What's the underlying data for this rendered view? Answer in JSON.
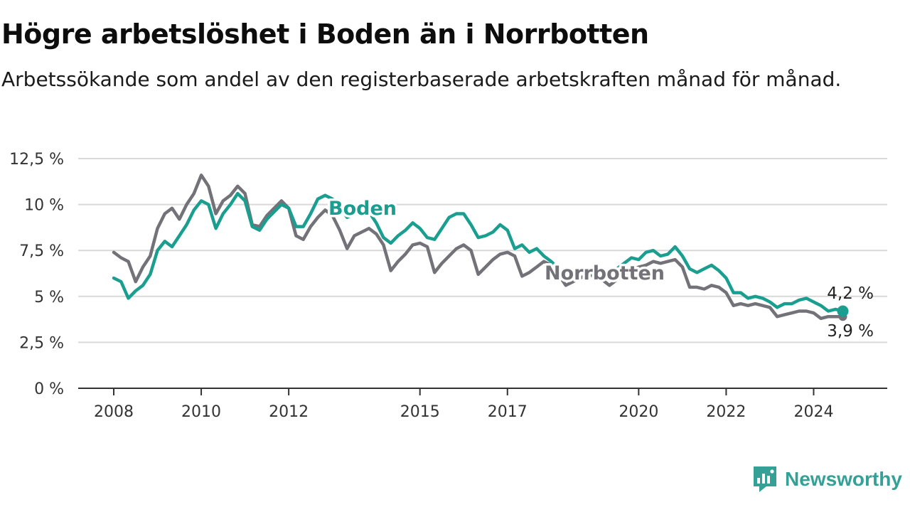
{
  "header": {
    "title": "Högre arbetslöshet i Boden än i Norrbotten",
    "subtitle": "Arbetssökande som andel av den registerbaserade arbetskraften månad för månad."
  },
  "brand": {
    "name": "Newsworthy",
    "icon": "newsworthy-logo-icon",
    "color": "#35a196"
  },
  "colors": {
    "boden": "#1a9e90",
    "norrbotten": "#727278",
    "grid": "#d9d9d9",
    "axis": "#333333"
  },
  "chart_data": {
    "type": "line",
    "title": "Högre arbetslöshet i Boden än i Norrbotten",
    "subtitle": "Arbetssökande som andel av den registerbaserade arbetskraften månad för månad.",
    "xlabel": "",
    "ylabel": "",
    "x_ticks": [
      "2008",
      "2010",
      "2012",
      "2015",
      "2017",
      "2020",
      "2022",
      "2024"
    ],
    "y_ticks": [
      "0 %",
      "2,5 %",
      "5 %",
      "7,5 %",
      "10 %",
      "12,5 %"
    ],
    "ylim": [
      0,
      12.5
    ],
    "grid": true,
    "series": [
      {
        "name": "Boden",
        "color": "#1a9e90",
        "last_label": "4,2 %",
        "points": [
          [
            "2008-01",
            6.0
          ],
          [
            "2008-03",
            5.8
          ],
          [
            "2008-05",
            4.9
          ],
          [
            "2008-07",
            5.3
          ],
          [
            "2008-09",
            5.6
          ],
          [
            "2008-11",
            6.2
          ],
          [
            "2009-01",
            7.5
          ],
          [
            "2009-03",
            8.0
          ],
          [
            "2009-05",
            7.7
          ],
          [
            "2009-07",
            8.3
          ],
          [
            "2009-09",
            8.9
          ],
          [
            "2009-11",
            9.7
          ],
          [
            "2010-01",
            10.2
          ],
          [
            "2010-03",
            10.0
          ],
          [
            "2010-05",
            8.7
          ],
          [
            "2010-07",
            9.5
          ],
          [
            "2010-09",
            10.0
          ],
          [
            "2010-11",
            10.6
          ],
          [
            "2011-01",
            10.2
          ],
          [
            "2011-03",
            8.8
          ],
          [
            "2011-05",
            8.6
          ],
          [
            "2011-07",
            9.2
          ],
          [
            "2011-09",
            9.6
          ],
          [
            "2011-11",
            10.0
          ],
          [
            "2012-01",
            9.8
          ],
          [
            "2012-03",
            8.8
          ],
          [
            "2012-05",
            8.8
          ],
          [
            "2012-07",
            9.5
          ],
          [
            "2012-09",
            10.3
          ],
          [
            "2012-11",
            10.5
          ],
          [
            "2013-01",
            10.3
          ],
          [
            "2013-03",
            9.9
          ],
          [
            "2013-05",
            9.3
          ],
          [
            "2013-07",
            9.5
          ],
          [
            "2013-09",
            9.8
          ],
          [
            "2013-11",
            9.6
          ],
          [
            "2014-01",
            9.0
          ],
          [
            "2014-03",
            8.2
          ],
          [
            "2014-05",
            7.9
          ],
          [
            "2014-07",
            8.3
          ],
          [
            "2014-09",
            8.6
          ],
          [
            "2014-11",
            9.0
          ],
          [
            "2015-01",
            8.7
          ],
          [
            "2015-03",
            8.2
          ],
          [
            "2015-05",
            8.1
          ],
          [
            "2015-07",
            8.7
          ],
          [
            "2015-09",
            9.3
          ],
          [
            "2015-11",
            9.5
          ],
          [
            "2016-01",
            9.5
          ],
          [
            "2016-03",
            8.9
          ],
          [
            "2016-05",
            8.2
          ],
          [
            "2016-07",
            8.3
          ],
          [
            "2016-09",
            8.5
          ],
          [
            "2016-11",
            8.9
          ],
          [
            "2017-01",
            8.6
          ],
          [
            "2017-03",
            7.6
          ],
          [
            "2017-05",
            7.8
          ],
          [
            "2017-07",
            7.4
          ],
          [
            "2017-09",
            7.6
          ],
          [
            "2017-11",
            7.2
          ],
          [
            "2018-01",
            6.9
          ],
          [
            "2018-03",
            6.5
          ],
          [
            "2018-05",
            6.2
          ],
          [
            "2018-07",
            6.4
          ],
          [
            "2018-09",
            6.4
          ],
          [
            "2018-11",
            6.3
          ],
          [
            "2019-01",
            6.2
          ],
          [
            "2019-03",
            6.3
          ],
          [
            "2019-05",
            6.2
          ],
          [
            "2019-07",
            6.5
          ],
          [
            "2019-09",
            6.8
          ],
          [
            "2019-11",
            7.1
          ],
          [
            "2020-01",
            7.0
          ],
          [
            "2020-03",
            7.4
          ],
          [
            "2020-05",
            7.5
          ],
          [
            "2020-07",
            7.2
          ],
          [
            "2020-09",
            7.3
          ],
          [
            "2020-11",
            7.7
          ],
          [
            "2021-01",
            7.2
          ],
          [
            "2021-03",
            6.5
          ],
          [
            "2021-05",
            6.3
          ],
          [
            "2021-07",
            6.5
          ],
          [
            "2021-09",
            6.7
          ],
          [
            "2021-11",
            6.4
          ],
          [
            "2022-01",
            6.0
          ],
          [
            "2022-03",
            5.2
          ],
          [
            "2022-05",
            5.2
          ],
          [
            "2022-07",
            4.9
          ],
          [
            "2022-09",
            5.0
          ],
          [
            "2022-11",
            4.9
          ],
          [
            "2023-01",
            4.7
          ],
          [
            "2023-03",
            4.4
          ],
          [
            "2023-05",
            4.6
          ],
          [
            "2023-07",
            4.6
          ],
          [
            "2023-09",
            4.8
          ],
          [
            "2023-11",
            4.9
          ],
          [
            "2024-01",
            4.7
          ],
          [
            "2024-03",
            4.5
          ],
          [
            "2024-05",
            4.2
          ],
          [
            "2024-07",
            4.3
          ],
          [
            "2024-09",
            4.2
          ]
        ]
      },
      {
        "name": "Norrbotten",
        "color": "#727278",
        "last_label": "3,9 %",
        "points": [
          [
            "2008-01",
            7.4
          ],
          [
            "2008-03",
            7.1
          ],
          [
            "2008-05",
            6.9
          ],
          [
            "2008-07",
            5.8
          ],
          [
            "2008-09",
            6.6
          ],
          [
            "2008-11",
            7.2
          ],
          [
            "2009-01",
            8.7
          ],
          [
            "2009-03",
            9.5
          ],
          [
            "2009-05",
            9.8
          ],
          [
            "2009-07",
            9.2
          ],
          [
            "2009-09",
            10.0
          ],
          [
            "2009-11",
            10.6
          ],
          [
            "2010-01",
            11.6
          ],
          [
            "2010-03",
            11.0
          ],
          [
            "2010-05",
            9.5
          ],
          [
            "2010-07",
            10.2
          ],
          [
            "2010-09",
            10.5
          ],
          [
            "2010-11",
            11.0
          ],
          [
            "2011-01",
            10.6
          ],
          [
            "2011-03",
            8.9
          ],
          [
            "2011-05",
            8.8
          ],
          [
            "2011-07",
            9.4
          ],
          [
            "2011-09",
            9.8
          ],
          [
            "2011-11",
            10.2
          ],
          [
            "2012-01",
            9.8
          ],
          [
            "2012-03",
            8.3
          ],
          [
            "2012-05",
            8.1
          ],
          [
            "2012-07",
            8.8
          ],
          [
            "2012-09",
            9.3
          ],
          [
            "2012-11",
            9.7
          ],
          [
            "2013-01",
            9.4
          ],
          [
            "2013-03",
            8.6
          ],
          [
            "2013-05",
            7.6
          ],
          [
            "2013-07",
            8.3
          ],
          [
            "2013-09",
            8.5
          ],
          [
            "2013-11",
            8.7
          ],
          [
            "2014-01",
            8.4
          ],
          [
            "2014-03",
            7.8
          ],
          [
            "2014-05",
            6.4
          ],
          [
            "2014-07",
            6.9
          ],
          [
            "2014-09",
            7.3
          ],
          [
            "2014-11",
            7.8
          ],
          [
            "2015-01",
            7.9
          ],
          [
            "2015-03",
            7.7
          ],
          [
            "2015-05",
            6.3
          ],
          [
            "2015-07",
            6.8
          ],
          [
            "2015-09",
            7.2
          ],
          [
            "2015-11",
            7.6
          ],
          [
            "2016-01",
            7.8
          ],
          [
            "2016-03",
            7.5
          ],
          [
            "2016-05",
            6.2
          ],
          [
            "2016-07",
            6.6
          ],
          [
            "2016-09",
            7.0
          ],
          [
            "2016-11",
            7.3
          ],
          [
            "2017-01",
            7.4
          ],
          [
            "2017-03",
            7.2
          ],
          [
            "2017-05",
            6.1
          ],
          [
            "2017-07",
            6.3
          ],
          [
            "2017-09",
            6.6
          ],
          [
            "2017-11",
            6.9
          ],
          [
            "2018-01",
            6.7
          ],
          [
            "2018-03",
            6.2
          ],
          [
            "2018-05",
            5.6
          ],
          [
            "2018-07",
            5.8
          ],
          [
            "2018-09",
            6.0
          ],
          [
            "2018-11",
            6.2
          ],
          [
            "2019-01",
            6.1
          ],
          [
            "2019-03",
            5.9
          ],
          [
            "2019-05",
            5.6
          ],
          [
            "2019-07",
            5.9
          ],
          [
            "2019-09",
            6.2
          ],
          [
            "2019-11",
            6.4
          ],
          [
            "2020-01",
            6.6
          ],
          [
            "2020-03",
            6.7
          ],
          [
            "2020-05",
            6.9
          ],
          [
            "2020-07",
            6.8
          ],
          [
            "2020-09",
            6.9
          ],
          [
            "2020-11",
            7.0
          ],
          [
            "2021-01",
            6.6
          ],
          [
            "2021-03",
            5.5
          ],
          [
            "2021-05",
            5.5
          ],
          [
            "2021-07",
            5.4
          ],
          [
            "2021-09",
            5.6
          ],
          [
            "2021-11",
            5.5
          ],
          [
            "2022-01",
            5.2
          ],
          [
            "2022-03",
            4.5
          ],
          [
            "2022-05",
            4.6
          ],
          [
            "2022-07",
            4.5
          ],
          [
            "2022-09",
            4.6
          ],
          [
            "2022-11",
            4.5
          ],
          [
            "2023-01",
            4.4
          ],
          [
            "2023-03",
            3.9
          ],
          [
            "2023-05",
            4.0
          ],
          [
            "2023-07",
            4.1
          ],
          [
            "2023-09",
            4.2
          ],
          [
            "2023-11",
            4.2
          ],
          [
            "2024-01",
            4.1
          ],
          [
            "2024-03",
            3.8
          ],
          [
            "2024-05",
            3.9
          ],
          [
            "2024-07",
            3.9
          ],
          [
            "2024-09",
            3.9
          ]
        ]
      }
    ]
  }
}
